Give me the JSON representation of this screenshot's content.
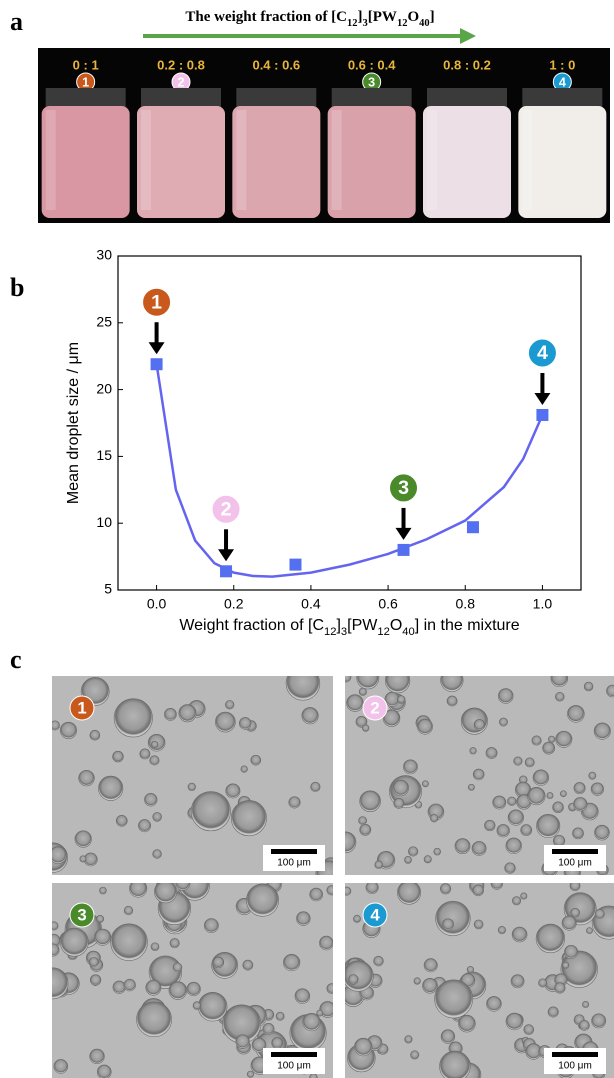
{
  "panel_a": {
    "label": "a",
    "arrow_title": [
      {
        "text": "The weight fraction of [C"
      },
      {
        "text": "12",
        "sub": true
      },
      {
        "text": "]"
      },
      {
        "text": "3",
        "sub": true
      },
      {
        "text": "[PW"
      },
      {
        "text": "12",
        "sub": true
      },
      {
        "text": "O"
      },
      {
        "text": "40",
        "sub": true
      },
      {
        "text": "]"
      }
    ],
    "arrow_color": "#5aa548",
    "vials": [
      {
        "ratio": "0 : 1",
        "badge": "1",
        "badge_color": "#c8581c",
        "color": "#d897a3"
      },
      {
        "ratio": "0.2 : 0.8",
        "badge": "2",
        "badge_color": "#f2c2ea",
        "color": "#dfacb3"
      },
      {
        "ratio": "0.4 : 0.6",
        "color": "#dba6ae"
      },
      {
        "ratio": "0.6 : 0.4",
        "badge": "3",
        "badge_color": "#4a8a2a",
        "color": "#d9a2aa"
      },
      {
        "ratio": "0.8 : 0.2",
        "color": "#ecdfe5"
      },
      {
        "ratio": "1 : 0",
        "badge": "4",
        "badge_color": "#1a9ad0",
        "color": "#f1eee9"
      }
    ]
  },
  "chart_data": {
    "type": "scatter",
    "label": "b",
    "y_label": "Mean droplet size / μm",
    "x_label": [
      {
        "text": "Weight fraction of [C"
      },
      {
        "text": "12",
        "sub": true
      },
      {
        "text": "]"
      },
      {
        "text": "3",
        "sub": true
      },
      {
        "text": "[PW"
      },
      {
        "text": "12",
        "sub": true
      },
      {
        "text": "O"
      },
      {
        "text": "40",
        "sub": true
      },
      {
        "text": "] in the mixture"
      }
    ],
    "series": [
      {
        "kind": "markers",
        "color": "#5470f0",
        "x": [
          0,
          0.18,
          0.36,
          0.64,
          0.82,
          1.0
        ],
        "values": [
          21.9,
          6.4,
          6.9,
          8.0,
          9.7,
          18.1
        ]
      },
      {
        "kind": "line",
        "color": "#6464f0",
        "x": [
          0,
          0.05,
          0.1,
          0.15,
          0.2,
          0.25,
          0.3,
          0.4,
          0.5,
          0.6,
          0.7,
          0.8,
          0.9,
          0.95,
          1.0
        ],
        "values": [
          21.9,
          12.5,
          8.7,
          7.0,
          6.3,
          6.05,
          6.0,
          6.3,
          6.9,
          7.7,
          8.8,
          10.2,
          12.7,
          14.8,
          18.1
        ]
      }
    ],
    "annotations": [
      {
        "text": "1",
        "x": 0,
        "color": "#c8581c"
      },
      {
        "text": "2",
        "x": 0.18,
        "color": "#f2c2ea"
      },
      {
        "text": "3",
        "x": 0.64,
        "color": "#4a8a2a"
      },
      {
        "text": "4",
        "x": 1.0,
        "color": "#1a9ad0"
      }
    ],
    "xlim": [
      -0.1,
      1.1
    ],
    "xticks": [
      {
        "value": 0,
        "label": "0.0"
      },
      {
        "value": 0.2,
        "label": "0.2"
      },
      {
        "value": 0.4,
        "label": "0.4"
      },
      {
        "value": 0.6,
        "label": "0.6"
      },
      {
        "value": 0.8,
        "label": "0.8"
      },
      {
        "value": 1.0,
        "label": "1.0"
      }
    ],
    "ylim": [
      5,
      30
    ],
    "yticks": [
      5,
      10,
      15,
      20,
      25,
      30
    ]
  },
  "panel_c": {
    "label": "c",
    "images": [
      {
        "badge": "1",
        "badge_color": "#c8581c",
        "scale": "100 μm"
      },
      {
        "badge": "2",
        "badge_color": "#f2c2ea",
        "scale": "100 μm"
      },
      {
        "badge": "3",
        "badge_color": "#4a8a2a",
        "scale": "100 μm"
      },
      {
        "badge": "4",
        "badge_color": "#1a9ad0",
        "scale": "100 μm"
      }
    ]
  }
}
